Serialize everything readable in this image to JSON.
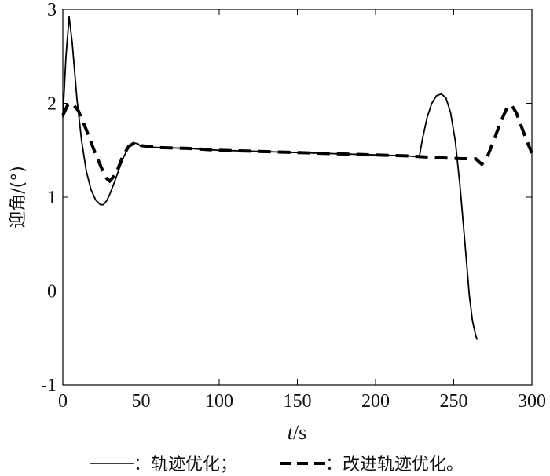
{
  "chart_data": {
    "type": "line",
    "ylabel": "迎角/(°)",
    "xlabel_italic": "t",
    "xlabel_unit": "/s",
    "xlim": [
      0,
      300
    ],
    "ylim": [
      -1,
      3
    ],
    "xticks": [
      0,
      50,
      100,
      150,
      200,
      250,
      300
    ],
    "yticks": [
      -1,
      0,
      1,
      2,
      3
    ],
    "grid": false,
    "legend_position": "bottom",
    "series": [
      {
        "name": "轨迹优化",
        "style": "solid",
        "color": "#000000",
        "x": [
          0,
          2,
          4,
          6,
          9,
          12,
          15,
          18,
          21,
          24,
          26,
          28,
          30,
          33,
          36,
          39,
          42,
          45,
          48,
          50,
          60,
          80,
          100,
          120,
          140,
          160,
          180,
          200,
          220,
          228,
          230,
          233,
          236,
          239,
          242,
          245,
          248,
          251,
          254,
          257,
          260,
          262,
          264,
          265
        ],
        "y": [
          1.85,
          2.5,
          2.92,
          2.65,
          2.05,
          1.6,
          1.28,
          1.08,
          0.97,
          0.92,
          0.92,
          0.96,
          1.03,
          1.16,
          1.3,
          1.43,
          1.53,
          1.58,
          1.57,
          1.54,
          1.53,
          1.52,
          1.5,
          1.49,
          1.48,
          1.47,
          1.46,
          1.45,
          1.44,
          1.43,
          1.62,
          1.85,
          2.0,
          2.08,
          2.1,
          2.06,
          1.9,
          1.6,
          1.12,
          0.55,
          -0.05,
          -0.32,
          -0.47,
          -0.52
        ]
      },
      {
        "name": "改进轨迹优化",
        "style": "dashed",
        "color": "#000000",
        "x": [
          0,
          3,
          6,
          10,
          15,
          20,
          25,
          28,
          30,
          34,
          38,
          42,
          46,
          50,
          60,
          80,
          100,
          120,
          140,
          160,
          180,
          200,
          220,
          240,
          255,
          264,
          268,
          272,
          276,
          280,
          284,
          287,
          290,
          294,
          298,
          300
        ],
        "y": [
          1.87,
          1.98,
          2.0,
          1.92,
          1.72,
          1.5,
          1.3,
          1.2,
          1.17,
          1.25,
          1.42,
          1.54,
          1.58,
          1.55,
          1.53,
          1.52,
          1.5,
          1.49,
          1.48,
          1.47,
          1.46,
          1.45,
          1.44,
          1.42,
          1.41,
          1.41,
          1.35,
          1.45,
          1.62,
          1.8,
          1.95,
          1.98,
          1.9,
          1.72,
          1.55,
          1.47
        ]
      }
    ],
    "legend": {
      "solid_text": "：轨迹优化；",
      "dashed_text": "：改进轨迹优化。"
    }
  }
}
